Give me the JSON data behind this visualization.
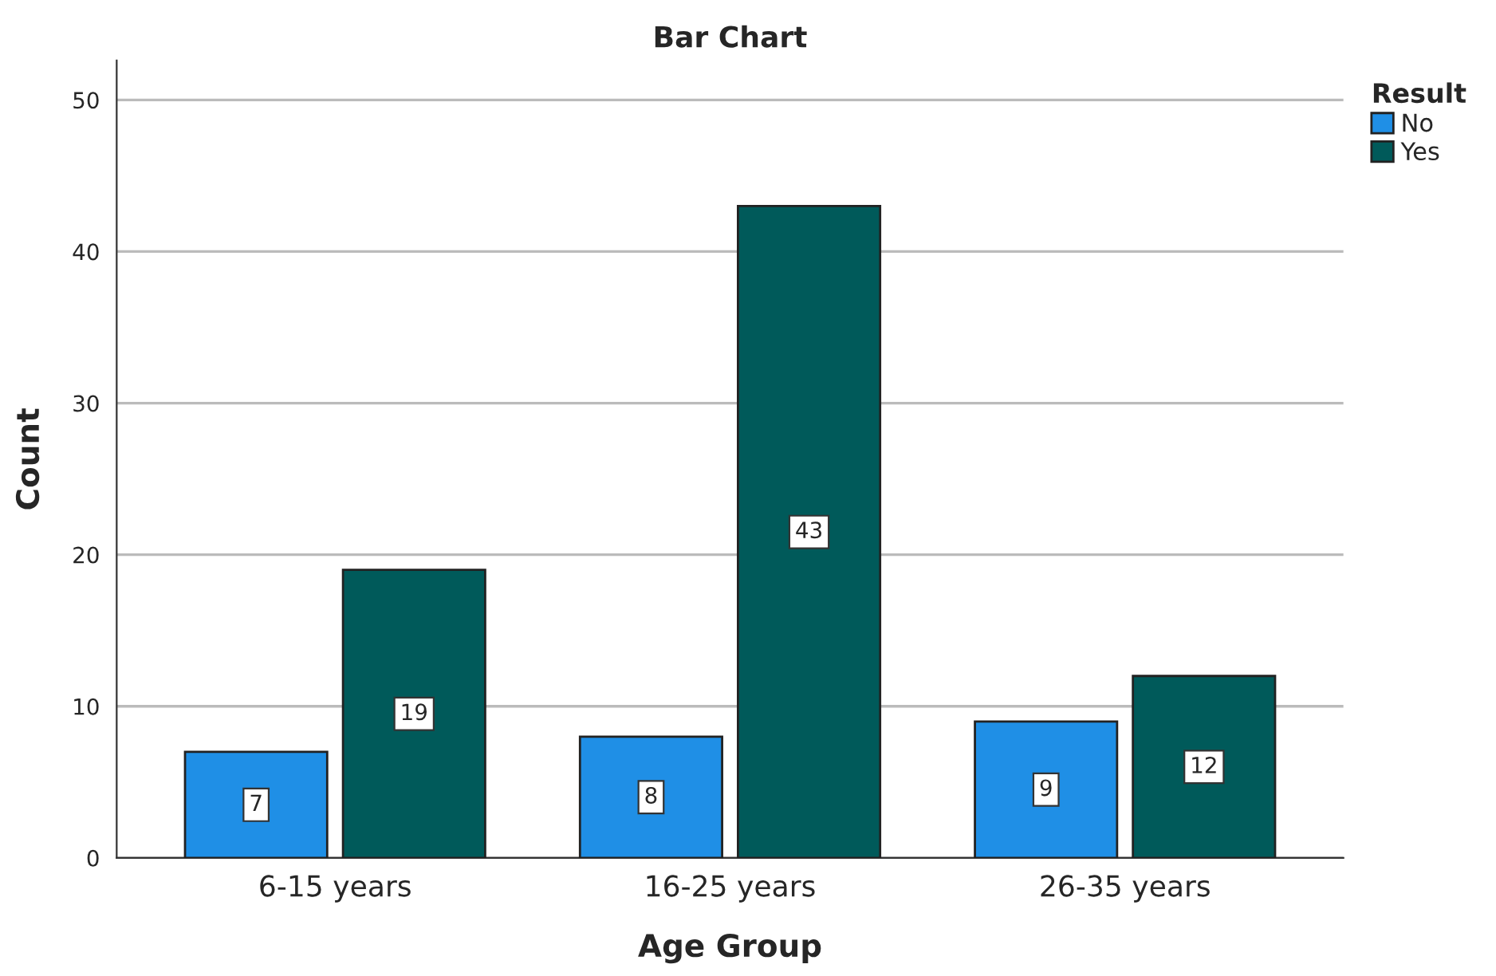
{
  "chart_data": {
    "type": "bar",
    "title": "Bar Chart",
    "xlabel": "Age Group",
    "ylabel": "Count",
    "legend_title": "Result",
    "categories": [
      "6-15 years",
      "16-25 years",
      "26-35 years"
    ],
    "series": [
      {
        "name": "No",
        "color": "#1f8fe6",
        "values": [
          7,
          8,
          9
        ]
      },
      {
        "name": "Yes",
        "color": "#005a5a",
        "values": [
          19,
          43,
          12
        ]
      }
    ],
    "ylim": [
      0,
      52.6
    ],
    "yticks": [
      0,
      10,
      20,
      30,
      40,
      50
    ],
    "grid": "y",
    "legend": "top right",
    "data_labels": true
  }
}
